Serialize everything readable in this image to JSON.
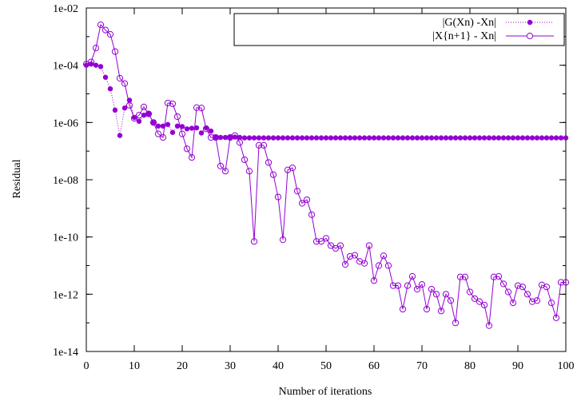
{
  "chart_data": {
    "type": "line",
    "xlabel": "Number of iterations",
    "ylabel": "Residual",
    "xlim": [
      0,
      100
    ],
    "ylim": [
      1e-14,
      0.01
    ],
    "yscale": "log",
    "grid": false,
    "legend_position": "top-right",
    "x_ticks": [
      0,
      10,
      20,
      30,
      40,
      50,
      60,
      70,
      80,
      90,
      100
    ],
    "x_tick_labels": [
      "0",
      "10",
      "20",
      "30",
      "40",
      "50",
      "60",
      "70",
      "80",
      "90",
      "100"
    ],
    "y_ticks": [
      1e-14,
      1e-12,
      1e-10,
      1e-08,
      1e-06,
      0.0001,
      0.01
    ],
    "y_tick_labels": [
      "1e-14",
      "1e-12",
      "1e-10",
      "1e-08",
      "1e-06",
      "1e-04",
      "1e-02"
    ],
    "color": "#9400d3",
    "series": [
      {
        "name": "|G(Xn) -Xn|",
        "style": "dotted line with filled circles",
        "x": [
          0,
          1,
          2,
          3,
          4,
          5,
          6,
          7,
          8,
          9,
          10,
          11,
          12,
          13,
          14,
          15,
          16,
          17,
          18,
          19,
          20,
          21,
          22,
          23,
          24,
          25,
          26,
          27,
          28,
          29,
          30,
          31,
          32,
          33,
          34,
          35,
          36,
          37,
          38,
          39,
          40,
          41,
          42,
          43,
          44,
          45,
          46,
          47,
          48,
          49,
          50,
          51,
          52,
          53,
          54,
          55,
          56,
          57,
          58,
          59,
          60,
          61,
          62,
          63,
          64,
          65,
          66,
          67,
          68,
          69,
          70,
          71,
          72,
          73,
          74,
          75,
          76,
          77,
          78,
          79,
          80,
          81,
          82,
          83,
          84,
          85,
          86,
          87,
          88,
          89,
          90,
          91,
          92,
          93,
          94,
          95,
          96,
          97,
          98,
          99,
          100
        ],
        "y": [
          0.0001,
          0.00011,
          0.0001,
          9e-05,
          3.8e-05,
          1.5e-05,
          2.7e-06,
          3.5e-07,
          3.2e-06,
          6e-06,
          1.5e-06,
          1.1e-06,
          1.8e-06,
          2e-06,
          1e-06,
          7.5e-07,
          7.5e-07,
          8.5e-07,
          4.5e-07,
          7.5e-07,
          7.2e-07,
          6e-07,
          6.3e-07,
          6.5e-07,
          4.3e-07,
          6.5e-07,
          5e-07,
          3e-07,
          3e-07,
          3e-07,
          3e-07,
          3.1e-07,
          3e-07,
          2.9e-07,
          2.9e-07,
          2.9e-07,
          2.9e-07,
          2.9e-07,
          2.9e-07,
          2.9e-07,
          2.9e-07,
          2.9e-07,
          2.9e-07,
          2.9e-07,
          2.9e-07,
          2.9e-07,
          2.9e-07,
          2.9e-07,
          2.9e-07,
          2.9e-07,
          2.9e-07,
          2.9e-07,
          2.9e-07,
          2.9e-07,
          2.9e-07,
          2.9e-07,
          2.9e-07,
          2.9e-07,
          2.9e-07,
          2.9e-07,
          2.9e-07,
          2.9e-07,
          2.9e-07,
          2.9e-07,
          2.9e-07,
          2.9e-07,
          2.9e-07,
          2.9e-07,
          2.9e-07,
          2.9e-07,
          2.9e-07,
          2.9e-07,
          2.9e-07,
          2.9e-07,
          2.9e-07,
          2.9e-07,
          2.9e-07,
          2.9e-07,
          2.9e-07,
          2.9e-07,
          2.9e-07,
          2.9e-07,
          2.9e-07,
          2.9e-07,
          2.9e-07,
          2.9e-07,
          2.9e-07,
          2.9e-07,
          2.9e-07,
          2.9e-07,
          2.9e-07,
          2.9e-07,
          2.9e-07,
          2.9e-07,
          2.9e-07,
          2.9e-07,
          2.9e-07,
          2.9e-07,
          2.9e-07,
          2.9e-07,
          2.9e-07
        ]
      },
      {
        "name": "|X{n+1} - Xn|",
        "style": "solid line with open circles",
        "x": [
          0,
          1,
          2,
          3,
          4,
          5,
          6,
          7,
          8,
          9,
          10,
          11,
          12,
          13,
          14,
          15,
          16,
          17,
          18,
          19,
          20,
          21,
          22,
          23,
          24,
          25,
          26,
          27,
          28,
          29,
          30,
          31,
          32,
          33,
          34,
          35,
          36,
          37,
          38,
          39,
          40,
          41,
          42,
          43,
          44,
          45,
          46,
          47,
          48,
          49,
          50,
          51,
          52,
          53,
          54,
          55,
          56,
          57,
          58,
          59,
          60,
          61,
          62,
          63,
          64,
          65,
          66,
          67,
          68,
          69,
          70,
          71,
          72,
          73,
          74,
          75,
          76,
          77,
          78,
          79,
          80,
          81,
          82,
          83,
          84,
          85,
          86,
          87,
          88,
          89,
          90,
          91,
          92,
          93,
          94,
          95,
          96,
          97,
          98,
          99,
          100
        ],
        "y": [
          0.00011,
          0.00013,
          0.0004,
          0.0026,
          0.0017,
          0.0012,
          0.0003,
          3.5e-05,
          2.3e-05,
          4e-06,
          1.4e-06,
          1.8e-06,
          3.5e-06,
          2e-06,
          1e-06,
          4e-07,
          3e-07,
          4.8e-06,
          4.5e-06,
          1.6e-06,
          4e-07,
          1.2e-07,
          6e-08,
          3.3e-06,
          3.2e-06,
          6e-07,
          3e-07,
          3e-07,
          3e-08,
          2e-08,
          3e-07,
          3.5e-07,
          2e-07,
          5e-08,
          2e-08,
          7e-11,
          1.6e-07,
          1.6e-07,
          4e-08,
          1.5e-08,
          2.5e-09,
          8e-11,
          2.2e-08,
          2.6e-08,
          4e-09,
          1.5e-09,
          2e-09,
          6e-10,
          7e-11,
          7e-11,
          9e-11,
          5e-11,
          4e-11,
          5e-11,
          1.1e-11,
          2.1e-11,
          2.3e-11,
          1.4e-11,
          1.2e-11,
          5e-11,
          3e-12,
          1e-11,
          2.2e-11,
          1e-11,
          2e-12,
          2e-12,
          3e-13,
          2e-12,
          4.2e-12,
          1.5e-12,
          2.2e-12,
          3e-13,
          1.5e-12,
          1e-12,
          2.6e-13,
          1e-12,
          6e-13,
          1e-13,
          4e-12,
          4e-12,
          1.2e-12,
          7e-13,
          5.5e-13,
          4.2e-13,
          8e-14,
          4e-12,
          4.2e-12,
          2.3e-12,
          1.2e-12,
          5e-13,
          2e-12,
          1.8e-12,
          1e-12,
          5.5e-13,
          6e-13,
          2.1e-12,
          1.8e-12,
          5e-13,
          1.5e-13,
          2.6e-12,
          2.6e-12
        ]
      }
    ]
  }
}
